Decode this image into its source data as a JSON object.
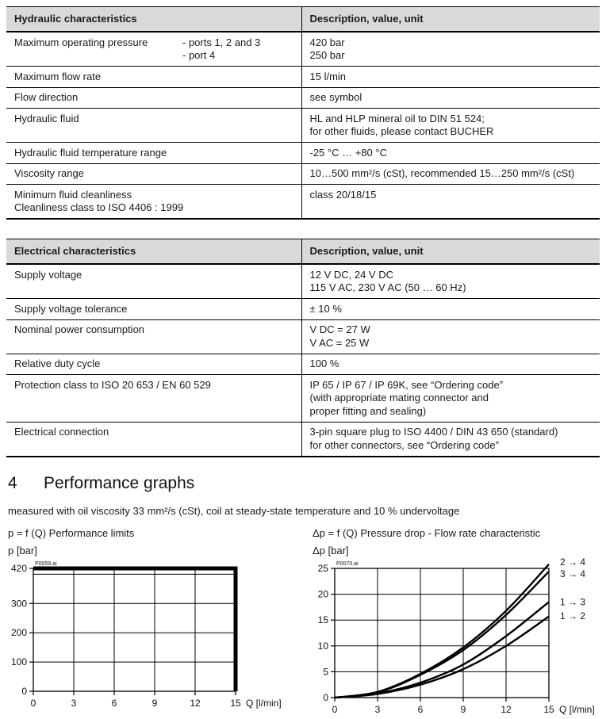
{
  "document": {
    "section": {
      "number": "4",
      "title": "Performance graphs",
      "intro": "measured with oil viscosity 33 mm²/s (cSt), coil at steady-state temperature and 10 % undervoltage"
    }
  },
  "tables": [
    {
      "title_col": "Hydraulic characteristics",
      "value_col": "Description, value, unit",
      "rows": [
        {
          "label": "Maximum operating pressure",
          "sub": [
            "- ports 1, 2 and 3",
            "- port 4"
          ],
          "value": [
            "420 bar",
            "250 bar"
          ]
        },
        {
          "label": "Maximum flow rate",
          "value": [
            "15 l/min"
          ]
        },
        {
          "label": "Flow direction",
          "value": [
            "see symbol"
          ]
        },
        {
          "label": "Hydraulic fluid",
          "value": [
            "HL and HLP mineral oil to DIN 51 524;",
            "for other fluids, please contact BUCHER"
          ]
        },
        {
          "label": "Hydraulic fluid temperature range",
          "value": [
            "-25 °C … +80 °C"
          ]
        },
        {
          "label": "Viscosity range",
          "value": [
            "10…500 mm²/s (cSt), recommended 15…250 mm²/s (cSt)"
          ]
        },
        {
          "label": [
            "Minimum fluid cleanliness",
            "Cleanliness class to ISO 4406 : 1999"
          ],
          "value": [
            "class 20/18/15"
          ]
        }
      ]
    },
    {
      "title_col": "Electrical characteristics",
      "value_col": "Description, value, unit",
      "rows": [
        {
          "label": "Supply voltage",
          "value": [
            "12 V DC, 24 V DC",
            "115 V AC, 230 V AC  (50 … 60 Hz)"
          ]
        },
        {
          "label": "Supply voltage tolerance",
          "value": [
            "± 10 %"
          ]
        },
        {
          "label": "Nominal power consumption",
          "value": [
            "V DC = 27 W",
            "V AC = 25 W"
          ]
        },
        {
          "label": "Relative duty cycle",
          "value": [
            "100 %"
          ]
        },
        {
          "label": "Protection class to ISO 20 653 / EN 60 529",
          "value": [
            "IP 65 / IP 67 / IP 69K, see “Ordering code”",
            "(with appropriate mating connector and",
            "proper fitting and sealing)"
          ]
        },
        {
          "label": "Electrical connection",
          "value": [
            "3-pin square plug to ISO 4400 / DIN 43 650 (standard)",
            "for other connectors, see “Ordering code”"
          ]
        }
      ]
    }
  ],
  "chart_data": [
    {
      "type": "line",
      "name": "performance-limits",
      "title": "p = f (Q) Performance limits",
      "file_label": "P0059.ai",
      "ylabel": "p [bar]",
      "xlabel": "Q [l/min]",
      "xlim": [
        0,
        15
      ],
      "ylim": [
        0,
        420
      ],
      "xticks": [
        0,
        3,
        6,
        9,
        12,
        15
      ],
      "yticks": [
        0,
        100,
        200,
        300,
        420
      ],
      "xgrid": [
        3,
        6,
        9,
        12
      ],
      "ygrid": [
        100,
        200,
        300,
        400
      ],
      "grid": true,
      "legend": "none",
      "series": [
        {
          "name": "performance-limit-envelope",
          "straight": true,
          "stroke_width": 5,
          "points": [
            [
              0,
              420
            ],
            [
              15,
              420
            ],
            [
              15,
              0
            ]
          ]
        }
      ]
    },
    {
      "type": "line",
      "name": "pressure-drop",
      "title": "Δp = f (Q) Pressure drop - Flow rate characteristic",
      "file_label": "P0070.ai",
      "ylabel": "Δp [bar]",
      "xlabel": "Q [l/min]",
      "xlim": [
        0,
        15
      ],
      "ylim": [
        0,
        25
      ],
      "xticks": [
        0,
        3,
        6,
        9,
        12,
        15
      ],
      "yticks": [
        0,
        5,
        10,
        15,
        20,
        25
      ],
      "xgrid": [
        3,
        6,
        9,
        12
      ],
      "ygrid": [
        5,
        10,
        15,
        20
      ],
      "grid": true,
      "legend": "curve-end-labels",
      "series": [
        {
          "name": "flow-path-2-to-4",
          "label": "2 → 4",
          "label_y": 26.2,
          "stroke_width": 2.4,
          "points": [
            [
              0,
              0
            ],
            [
              3,
              1.1
            ],
            [
              6,
              4.6
            ],
            [
              9,
              9.7
            ],
            [
              12,
              16.8
            ],
            [
              15,
              25.8
            ]
          ]
        },
        {
          "name": "flow-path-3-to-4",
          "label": "3 → 4",
          "label_y": 23.9,
          "stroke_width": 2.4,
          "points": [
            [
              0,
              0
            ],
            [
              3,
              1.0
            ],
            [
              6,
              4.4
            ],
            [
              9,
              9.2
            ],
            [
              12,
              16.0
            ],
            [
              15,
              24.4
            ]
          ]
        },
        {
          "name": "flow-path-1-to-3",
          "label": "1 → 3",
          "label_y": 18.5,
          "stroke_width": 2.4,
          "points": [
            [
              0,
              0
            ],
            [
              3,
              0.8
            ],
            [
              6,
              2.9
            ],
            [
              9,
              6.4
            ],
            [
              12,
              11.9
            ],
            [
              15,
              18.5
            ]
          ]
        },
        {
          "name": "flow-path-1-to-2",
          "label": "1 → 2",
          "label_y": 15.8,
          "stroke_width": 2.4,
          "points": [
            [
              0,
              0
            ],
            [
              3,
              0.7
            ],
            [
              6,
              2.5
            ],
            [
              9,
              5.5
            ],
            [
              12,
              10.0
            ],
            [
              15,
              15.7
            ]
          ]
        }
      ]
    }
  ]
}
